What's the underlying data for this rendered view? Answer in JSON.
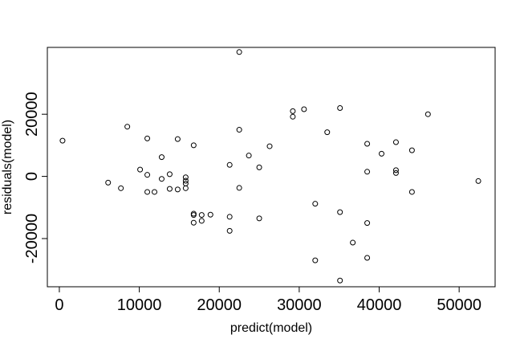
{
  "chart_data": {
    "type": "scatter",
    "title": "",
    "xlabel": "predict(model)",
    "ylabel": "residuals(model)",
    "xlim": [
      -1500,
      54500
    ],
    "ylim": [
      -35500,
      41500
    ],
    "xticks": [
      0,
      10000,
      20000,
      30000,
      40000,
      50000
    ],
    "yticks": [
      -20000,
      0,
      20000
    ],
    "grid": false,
    "marker": "open-circle",
    "points": [
      {
        "x": 400,
        "y": 11500
      },
      {
        "x": 6100,
        "y": -2000
      },
      {
        "x": 7700,
        "y": -3800
      },
      {
        "x": 8500,
        "y": 16000
      },
      {
        "x": 10100,
        "y": 2200
      },
      {
        "x": 11000,
        "y": 12200
      },
      {
        "x": 11000,
        "y": 500
      },
      {
        "x": 11000,
        "y": -5000
      },
      {
        "x": 11900,
        "y": -5000
      },
      {
        "x": 12800,
        "y": 6200
      },
      {
        "x": 12800,
        "y": -800
      },
      {
        "x": 13800,
        "y": 700
      },
      {
        "x": 13800,
        "y": -4000
      },
      {
        "x": 14800,
        "y": 12000
      },
      {
        "x": 14800,
        "y": -4200
      },
      {
        "x": 15800,
        "y": -300
      },
      {
        "x": 15800,
        "y": -1400
      },
      {
        "x": 15800,
        "y": -2300
      },
      {
        "x": 15800,
        "y": -3800
      },
      {
        "x": 16800,
        "y": 10000
      },
      {
        "x": 16800,
        "y": -12000
      },
      {
        "x": 16800,
        "y": -12400
      },
      {
        "x": 16800,
        "y": -14900
      },
      {
        "x": 17800,
        "y": -12400
      },
      {
        "x": 17800,
        "y": -14300
      },
      {
        "x": 18900,
        "y": -12300
      },
      {
        "x": 21300,
        "y": 3700
      },
      {
        "x": 21300,
        "y": -13000
      },
      {
        "x": 21300,
        "y": -17500
      },
      {
        "x": 22500,
        "y": 40000
      },
      {
        "x": 22500,
        "y": 15000
      },
      {
        "x": 22500,
        "y": -3700
      },
      {
        "x": 23700,
        "y": 6700
      },
      {
        "x": 25000,
        "y": 2900
      },
      {
        "x": 25000,
        "y": -13500
      },
      {
        "x": 26300,
        "y": 9700
      },
      {
        "x": 29200,
        "y": 21000
      },
      {
        "x": 29200,
        "y": 19200
      },
      {
        "x": 30600,
        "y": 21600
      },
      {
        "x": 32000,
        "y": -8800
      },
      {
        "x": 32000,
        "y": -27000
      },
      {
        "x": 33500,
        "y": 14200
      },
      {
        "x": 35100,
        "y": 22000
      },
      {
        "x": 35100,
        "y": -11500
      },
      {
        "x": 35100,
        "y": -33500
      },
      {
        "x": 36700,
        "y": -21300
      },
      {
        "x": 38500,
        "y": 10500
      },
      {
        "x": 38500,
        "y": 1500
      },
      {
        "x": 38500,
        "y": -15000
      },
      {
        "x": 38500,
        "y": -26200
      },
      {
        "x": 40300,
        "y": 7300
      },
      {
        "x": 42100,
        "y": 11000
      },
      {
        "x": 42100,
        "y": 2000
      },
      {
        "x": 42100,
        "y": 1100
      },
      {
        "x": 44100,
        "y": 8400
      },
      {
        "x": 44100,
        "y": -5000
      },
      {
        "x": 46100,
        "y": 20000
      },
      {
        "x": 52400,
        "y": -1500
      }
    ]
  }
}
